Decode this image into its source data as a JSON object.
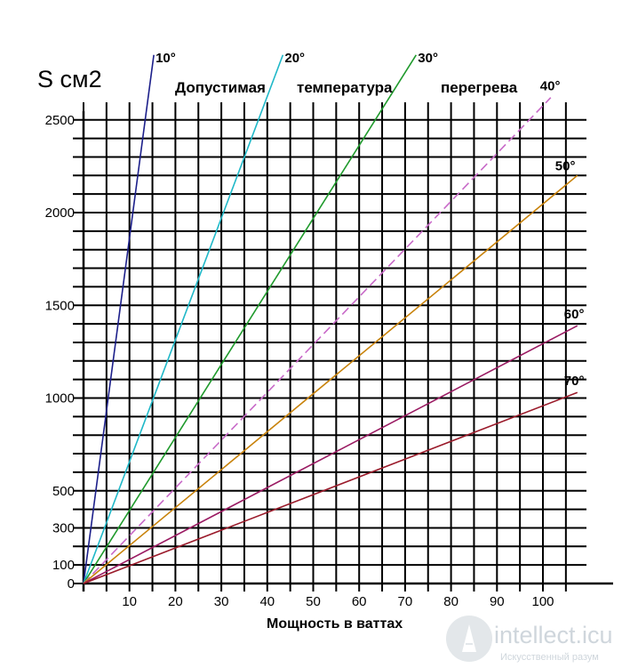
{
  "chart_data": {
    "type": "line",
    "ylabel": "S см2",
    "xlabel": "Мощность в ваттах",
    "title_parts": [
      "Допустимая",
      "температура",
      "перегрева"
    ],
    "xlim": [
      0,
      100
    ],
    "ylim": [
      0,
      2500
    ],
    "x_ticks": [
      10,
      20,
      30,
      40,
      50,
      60,
      70,
      80,
      90,
      100
    ],
    "y_ticks": [
      0,
      100,
      300,
      500,
      1000,
      1500,
      2000,
      2500
    ],
    "grid": true,
    "series": [
      {
        "name": "10°",
        "color": "#1c1f8a",
        "dash": "none",
        "x": [
          0,
          15.3
        ],
        "y": [
          0,
          2850
        ]
      },
      {
        "name": "20°",
        "color": "#1fb8c8",
        "dash": "none",
        "x": [
          0,
          43.4
        ],
        "y": [
          0,
          2850
        ]
      },
      {
        "name": "30°",
        "color": "#1f9a2c",
        "dash": "none",
        "x": [
          0,
          72.4
        ],
        "y": [
          0,
          2850
        ]
      },
      {
        "name": "40°",
        "color": "#c86ac8",
        "dash": "10,5",
        "x": [
          0,
          101.7
        ],
        "y": [
          0,
          2620
        ]
      },
      {
        "name": "50°",
        "color": "#c8820a",
        "dash": "none",
        "x": [
          0,
          107.5
        ],
        "y": [
          0,
          2200
        ]
      },
      {
        "name": "60°",
        "color": "#9a1a62",
        "dash": "none",
        "x": [
          0,
          107.5
        ],
        "y": [
          0,
          1390
        ]
      },
      {
        "name": "70°",
        "color": "#9a1a2a",
        "dash": "none",
        "x": [
          0,
          107.5
        ],
        "y": [
          0,
          1030
        ]
      }
    ]
  },
  "watermark": {
    "text": "intellect.icu",
    "subtext": "Искусственный разум"
  }
}
